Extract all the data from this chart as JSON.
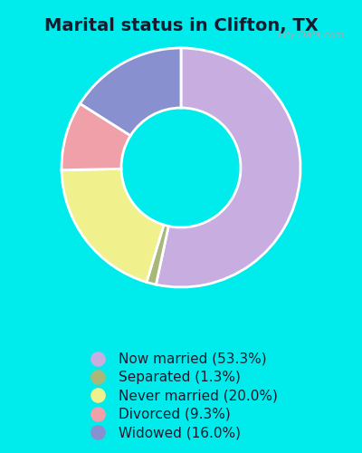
{
  "title": "Marital status in Clifton, TX",
  "background_outer": "#00ecec",
  "background_inner_color": "#c8e8c8",
  "slices": [
    {
      "label": "Now married (53.3%)",
      "value": 53.3,
      "color": "#c8aee0"
    },
    {
      "label": "Separated (1.3%)",
      "value": 1.3,
      "color": "#a8b878"
    },
    {
      "label": "Never married (20.0%)",
      "value": 20.0,
      "color": "#f0f08c"
    },
    {
      "label": "Divorced (9.3%)",
      "value": 9.3,
      "color": "#f0a0a8"
    },
    {
      "label": "Widowed (16.0%)",
      "value": 16.0,
      "color": "#8890d0"
    }
  ],
  "legend_fontsize": 11,
  "title_fontsize": 14,
  "watermark": "City-Data.com"
}
